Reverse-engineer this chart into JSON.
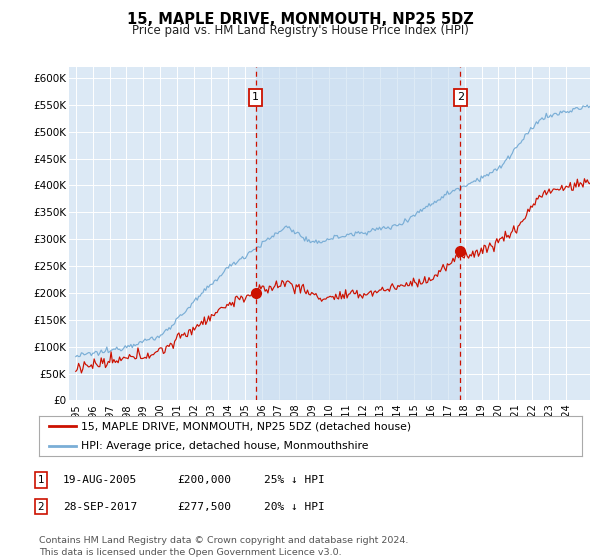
{
  "title": "15, MAPLE DRIVE, MONMOUTH, NP25 5DZ",
  "subtitle": "Price paid vs. HM Land Registry's House Price Index (HPI)",
  "ylabel_ticks": [
    "£0",
    "£50K",
    "£100K",
    "£150K",
    "£200K",
    "£250K",
    "£300K",
    "£350K",
    "£400K",
    "£450K",
    "£500K",
    "£550K",
    "£600K"
  ],
  "ytick_vals": [
    0,
    50000,
    100000,
    150000,
    200000,
    250000,
    300000,
    350000,
    400000,
    450000,
    500000,
    550000,
    600000
  ],
  "ylim": [
    0,
    620000
  ],
  "xlim_start": 1994.6,
  "xlim_end": 2025.4,
  "bg_color": "#dce9f5",
  "shade_color": "#c8ddf0",
  "grid_color": "#ffffff",
  "hpi_color": "#7aaed6",
  "price_color": "#cc1100",
  "marker1_x": 2005.63,
  "marker1_y": 200000,
  "marker2_x": 2017.75,
  "marker2_y": 277500,
  "legend_entries": [
    "15, MAPLE DRIVE, MONMOUTH, NP25 5DZ (detached house)",
    "HPI: Average price, detached house, Monmouthshire"
  ],
  "table_rows": [
    [
      "1",
      "19-AUG-2005",
      "£200,000",
      "25% ↓ HPI"
    ],
    [
      "2",
      "28-SEP-2017",
      "£277,500",
      "20% ↓ HPI"
    ]
  ],
  "footer": "Contains HM Land Registry data © Crown copyright and database right 2024.\nThis data is licensed under the Open Government Licence v3.0.",
  "xtick_years": [
    1995,
    1996,
    1997,
    1998,
    1999,
    2000,
    2001,
    2002,
    2003,
    2004,
    2005,
    2006,
    2007,
    2008,
    2009,
    2010,
    2011,
    2012,
    2013,
    2014,
    2015,
    2016,
    2017,
    2018,
    2019,
    2020,
    2021,
    2022,
    2023,
    2024
  ]
}
